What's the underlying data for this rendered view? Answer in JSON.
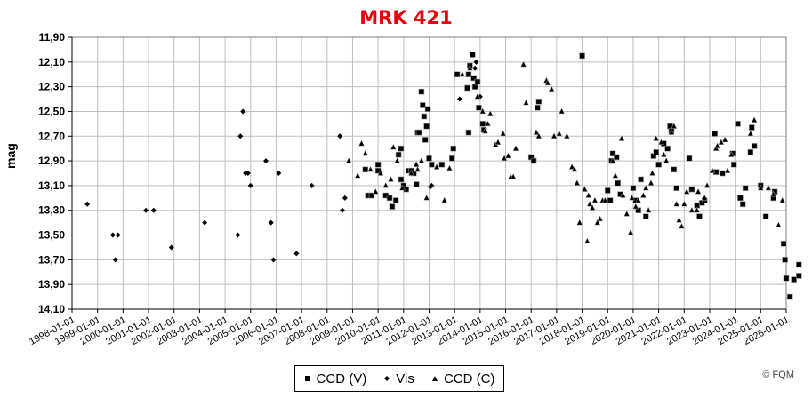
{
  "chart_data": {
    "type": "scatter",
    "title": "MRK 421",
    "xlabel": "",
    "ylabel": "mag",
    "y_inverted": true,
    "ylim": [
      11.9,
      14.1
    ],
    "xlim": [
      "1998-01-01",
      "2026-01-01"
    ],
    "yticks": [
      "11,90",
      "12,10",
      "12,30",
      "12,50",
      "12,70",
      "12,90",
      "13,10",
      "13,30",
      "13,50",
      "13,70",
      "13,90",
      "14,10"
    ],
    "xticks": [
      "1998-01-01",
      "1999-01-01",
      "2000-01-01",
      "2001-01-01",
      "2002-01-01",
      "2003-01-01",
      "2004-01-01",
      "2005-01-01",
      "2006-01-01",
      "2007-01-01",
      "2008-01-01",
      "2009-01-01",
      "2010-01-01",
      "2011-01-01",
      "2012-01-01",
      "2013-01-01",
      "2014-01-01",
      "2015-01-01",
      "2016-01-01",
      "2017-01-01",
      "2018-01-01",
      "2019-01-01",
      "2020-01-01",
      "2021-01-01",
      "2022-01-01",
      "2023-01-01",
      "2024-01-01",
      "2025-01-01",
      "2026-01-01"
    ],
    "grid": true,
    "legend_position": "bottom",
    "series": [
      {
        "name": "CCD (V)",
        "marker": "square",
        "points": [
          [
            2009.5,
            12.97
          ],
          [
            2009.6,
            13.18
          ],
          [
            2009.75,
            13.18
          ],
          [
            2010.0,
            12.98
          ],
          [
            2010.0,
            12.93
          ],
          [
            2010.3,
            13.18
          ],
          [
            2010.45,
            13.2
          ],
          [
            2010.55,
            13.27
          ],
          [
            2010.7,
            13.22
          ],
          [
            2010.8,
            12.85
          ],
          [
            2010.9,
            12.8
          ],
          [
            2010.9,
            13.05
          ],
          [
            2011.0,
            13.1
          ],
          [
            2011.1,
            13.13
          ],
          [
            2011.2,
            12.98
          ],
          [
            2011.3,
            12.98
          ],
          [
            2011.4,
            13.0
          ],
          [
            2011.5,
            13.09
          ],
          [
            2011.55,
            12.67
          ],
          [
            2011.6,
            12.67
          ],
          [
            2011.7,
            12.34
          ],
          [
            2011.75,
            12.45
          ],
          [
            2011.8,
            12.54
          ],
          [
            2011.85,
            12.73
          ],
          [
            2011.9,
            12.62
          ],
          [
            2011.95,
            12.48
          ],
          [
            2012.0,
            12.88
          ],
          [
            2012.1,
            12.93
          ],
          [
            2012.5,
            12.93
          ],
          [
            2012.9,
            12.88
          ],
          [
            2012.95,
            12.8
          ],
          [
            2013.1,
            12.2
          ],
          [
            2013.5,
            12.31
          ],
          [
            2013.55,
            12.2
          ],
          [
            2013.6,
            12.13
          ],
          [
            2013.7,
            12.04
          ],
          [
            2013.75,
            12.23
          ],
          [
            2013.8,
            12.3
          ],
          [
            2013.9,
            12.26
          ],
          [
            2013.95,
            12.47
          ],
          [
            2013.55,
            12.67
          ],
          [
            2014.1,
            12.6
          ],
          [
            2014.15,
            12.65
          ],
          [
            2016.3,
            12.42
          ],
          [
            2016.25,
            12.47
          ],
          [
            2016.0,
            12.87
          ],
          [
            2016.1,
            12.9
          ],
          [
            2018.0,
            12.05
          ],
          [
            2019.0,
            13.14
          ],
          [
            2019.1,
            13.22
          ],
          [
            2019.15,
            12.9
          ],
          [
            2019.2,
            12.84
          ],
          [
            2019.35,
            12.87
          ],
          [
            2019.4,
            13.08
          ],
          [
            2019.5,
            13.17
          ],
          [
            2020.0,
            13.12
          ],
          [
            2020.1,
            13.22
          ],
          [
            2020.2,
            13.3
          ],
          [
            2020.3,
            13.05
          ],
          [
            2020.5,
            13.35
          ],
          [
            2020.8,
            12.86
          ],
          [
            2020.9,
            12.83
          ],
          [
            2021.0,
            12.93
          ],
          [
            2021.2,
            12.76
          ],
          [
            2021.35,
            12.8
          ],
          [
            2021.45,
            12.62
          ],
          [
            2021.5,
            12.66
          ],
          [
            2021.6,
            12.97
          ],
          [
            2021.7,
            13.12
          ],
          [
            2022.2,
            12.88
          ],
          [
            2022.3,
            13.13
          ],
          [
            2022.5,
            13.26
          ],
          [
            2022.6,
            13.35
          ],
          [
            2022.7,
            13.24
          ],
          [
            2022.8,
            13.22
          ],
          [
            2023.2,
            12.68
          ],
          [
            2023.25,
            12.99
          ],
          [
            2023.5,
            13.0
          ],
          [
            2023.9,
            12.84
          ],
          [
            2023.95,
            12.93
          ],
          [
            2024.1,
            12.6
          ],
          [
            2024.2,
            13.2
          ],
          [
            2024.3,
            13.25
          ],
          [
            2024.4,
            13.12
          ],
          [
            2024.6,
            12.83
          ],
          [
            2024.65,
            12.63
          ],
          [
            2024.75,
            12.78
          ],
          [
            2025.0,
            13.1
          ],
          [
            2025.2,
            13.35
          ],
          [
            2025.5,
            13.2
          ],
          [
            2025.55,
            13.15
          ],
          [
            2025.9,
            13.57
          ],
          [
            2025.95,
            13.7
          ],
          [
            2026.0,
            13.85
          ],
          [
            2026.15,
            14.0
          ],
          [
            2026.3,
            13.86
          ],
          [
            2026.5,
            13.83
          ],
          [
            2026.5,
            13.74
          ]
        ]
      },
      {
        "name": "Vis",
        "marker": "diamond",
        "points": [
          [
            1998.6,
            13.25
          ],
          [
            1999.6,
            13.5
          ],
          [
            1999.7,
            13.7
          ],
          [
            1999.8,
            13.5
          ],
          [
            2000.9,
            13.3
          ],
          [
            2001.2,
            13.3
          ],
          [
            2001.9,
            13.6
          ],
          [
            2003.2,
            13.4
          ],
          [
            2004.5,
            13.5
          ],
          [
            2004.6,
            12.7
          ],
          [
            2004.7,
            12.5
          ],
          [
            2004.8,
            13.0
          ],
          [
            2004.9,
            13.0
          ],
          [
            2005.0,
            13.1
          ],
          [
            2005.6,
            12.9
          ],
          [
            2005.8,
            13.4
          ],
          [
            2005.9,
            13.7
          ],
          [
            2006.1,
            13.0
          ],
          [
            2006.8,
            13.65
          ],
          [
            2007.4,
            13.1
          ],
          [
            2008.5,
            12.7
          ],
          [
            2008.6,
            13.3
          ],
          [
            2008.7,
            13.2
          ],
          [
            2013.8,
            12.15
          ],
          [
            2013.85,
            12.1
          ],
          [
            2014.0,
            12.38
          ],
          [
            2013.2,
            12.4
          ],
          [
            2012.1,
            13.1
          ],
          [
            2012.05,
            13.11
          ]
        ]
      },
      {
        "name": "CCD (C)",
        "marker": "triangle",
        "points": [
          [
            2008.85,
            12.9
          ],
          [
            2009.2,
            13.02
          ],
          [
            2009.35,
            12.76
          ],
          [
            2009.5,
            12.84
          ],
          [
            2009.7,
            12.97
          ],
          [
            2009.9,
            13.15
          ],
          [
            2010.1,
            13.0
          ],
          [
            2010.3,
            13.1
          ],
          [
            2010.5,
            13.05
          ],
          [
            2010.6,
            12.79
          ],
          [
            2010.75,
            12.9
          ],
          [
            2010.95,
            13.12
          ],
          [
            2011.3,
            13.0
          ],
          [
            2011.5,
            12.93
          ],
          [
            2011.55,
            12.97
          ],
          [
            2011.7,
            12.9
          ],
          [
            2011.9,
            13.2
          ],
          [
            2012.3,
            12.95
          ],
          [
            2012.6,
            13.22
          ],
          [
            2012.8,
            12.96
          ],
          [
            2013.3,
            12.2
          ],
          [
            2013.6,
            12.15
          ],
          [
            2013.9,
            12.38
          ],
          [
            2014.1,
            12.5
          ],
          [
            2014.2,
            12.66
          ],
          [
            2014.3,
            12.6
          ],
          [
            2014.4,
            12.52
          ],
          [
            2014.6,
            12.77
          ],
          [
            2014.7,
            12.75
          ],
          [
            2014.9,
            12.68
          ],
          [
            2014.95,
            12.88
          ],
          [
            2015.1,
            12.86
          ],
          [
            2015.2,
            13.03
          ],
          [
            2015.3,
            13.03
          ],
          [
            2015.4,
            12.8
          ],
          [
            2015.7,
            12.12
          ],
          [
            2015.8,
            12.43
          ],
          [
            2016.2,
            12.67
          ],
          [
            2016.3,
            12.7
          ],
          [
            2016.6,
            12.25
          ],
          [
            2016.65,
            12.27
          ],
          [
            2016.8,
            12.32
          ],
          [
            2016.9,
            12.7
          ],
          [
            2017.2,
            12.5
          ],
          [
            2017.4,
            12.7
          ],
          [
            2017.1,
            12.68
          ],
          [
            2017.6,
            12.95
          ],
          [
            2017.7,
            12.97
          ],
          [
            2017.8,
            13.08
          ],
          [
            2017.9,
            13.4
          ],
          [
            2018.1,
            13.13
          ],
          [
            2018.2,
            13.55
          ],
          [
            2018.25,
            13.18
          ],
          [
            2018.3,
            13.25
          ],
          [
            2018.4,
            13.28
          ],
          [
            2018.5,
            13.22
          ],
          [
            2018.6,
            13.4
          ],
          [
            2018.7,
            13.37
          ],
          [
            2018.8,
            13.22
          ],
          [
            2018.9,
            13.22
          ],
          [
            2019.2,
            12.9
          ],
          [
            2019.3,
            13.02
          ],
          [
            2019.55,
            12.72
          ],
          [
            2019.6,
            13.18
          ],
          [
            2019.75,
            13.33
          ],
          [
            2019.9,
            13.48
          ],
          [
            2019.95,
            13.2
          ],
          [
            2020.1,
            13.27
          ],
          [
            2020.2,
            13.22
          ],
          [
            2020.4,
            13.18
          ],
          [
            2020.5,
            13.12
          ],
          [
            2020.6,
            13.3
          ],
          [
            2020.7,
            13.08
          ],
          [
            2020.75,
            13.0
          ],
          [
            2020.9,
            12.72
          ],
          [
            2021.1,
            12.75
          ],
          [
            2021.2,
            12.85
          ],
          [
            2021.3,
            12.9
          ],
          [
            2021.5,
            12.67
          ],
          [
            2021.6,
            12.62
          ],
          [
            2021.7,
            13.25
          ],
          [
            2021.8,
            13.38
          ],
          [
            2021.9,
            13.43
          ],
          [
            2022.0,
            13.25
          ],
          [
            2022.1,
            13.15
          ],
          [
            2022.3,
            13.3
          ],
          [
            2022.5,
            13.3
          ],
          [
            2022.55,
            13.15
          ],
          [
            2022.8,
            13.2
          ],
          [
            2022.9,
            13.1
          ],
          [
            2023.1,
            12.98
          ],
          [
            2023.25,
            12.8
          ],
          [
            2023.3,
            12.78
          ],
          [
            2023.45,
            12.75
          ],
          [
            2023.6,
            12.73
          ],
          [
            2023.7,
            12.98
          ],
          [
            2023.85,
            12.85
          ],
          [
            2024.6,
            12.68
          ],
          [
            2024.75,
            12.57
          ],
          [
            2025.0,
            13.12
          ],
          [
            2025.3,
            13.12
          ],
          [
            2025.5,
            13.17
          ],
          [
            2025.7,
            13.42
          ],
          [
            2025.85,
            13.22
          ]
        ]
      }
    ]
  },
  "legend": {
    "items": [
      {
        "label": "CCD (V)",
        "marker": "square"
      },
      {
        "label": "Vis",
        "marker": "diamond"
      },
      {
        "label": "CCD (C)",
        "marker": "triangle"
      }
    ]
  },
  "footer": {
    "copyright": "© FQM"
  },
  "colors": {
    "title": "#e8000b",
    "grid": "#bfbfbf",
    "axis": "#000000",
    "marker": "#000000"
  }
}
